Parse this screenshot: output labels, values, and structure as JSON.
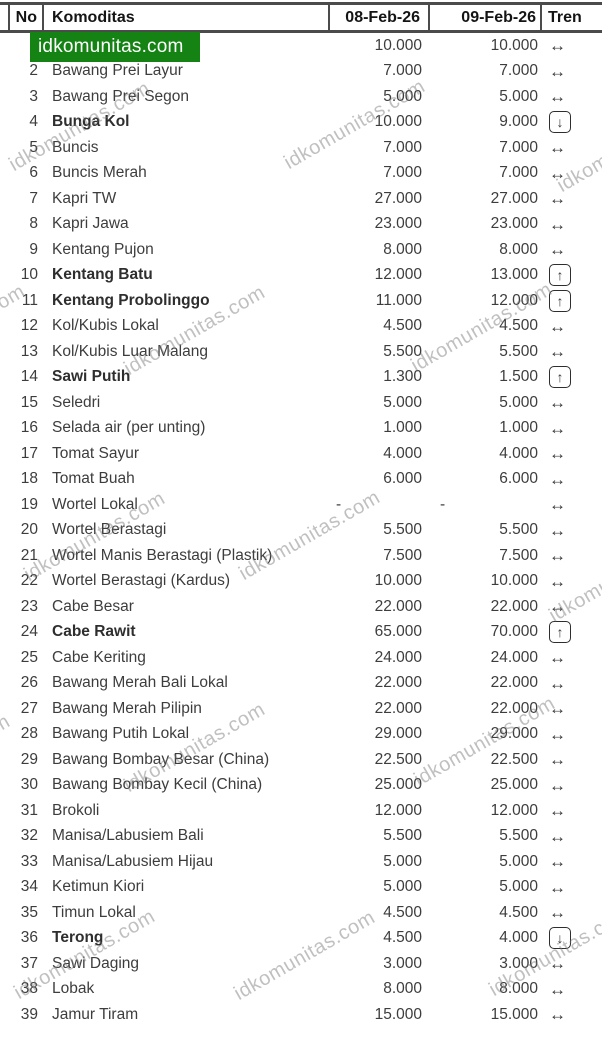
{
  "watermark": {
    "text": "idkomunitas.com",
    "banner_color": "#148314",
    "diagonal_color": "rgba(115,115,115,0.45)"
  },
  "icons": {
    "same": "↔",
    "up": "↑",
    "down": "↓"
  },
  "table": {
    "columns": {
      "no": "No",
      "komoditas": "Komoditas",
      "date1": "08-Feb-26",
      "date2": "09-Feb-26",
      "tren": "Tren"
    },
    "rows": [
      {
        "no": "1",
        "name": "",
        "bold": false,
        "p1": "10.000",
        "p2": "10.000",
        "trend": "same"
      },
      {
        "no": "2",
        "name": "Bawang Prei Layur",
        "bold": false,
        "p1": "7.000",
        "p2": "7.000",
        "trend": "same"
      },
      {
        "no": "3",
        "name": "Bawang Prei Segon",
        "bold": false,
        "p1": "5.000",
        "p2": "5.000",
        "trend": "same"
      },
      {
        "no": "4",
        "name": "Bunga Kol",
        "bold": true,
        "p1": "10.000",
        "p2": "9.000",
        "trend": "down"
      },
      {
        "no": "5",
        "name": "Buncis",
        "bold": false,
        "p1": "7.000",
        "p2": "7.000",
        "trend": "same"
      },
      {
        "no": "6",
        "name": "Buncis Merah",
        "bold": false,
        "p1": "7.000",
        "p2": "7.000",
        "trend": "same"
      },
      {
        "no": "7",
        "name": "Kapri TW",
        "bold": false,
        "p1": "27.000",
        "p2": "27.000",
        "trend": "same"
      },
      {
        "no": "8",
        "name": "Kapri Jawa",
        "bold": false,
        "p1": "23.000",
        "p2": "23.000",
        "trend": "same"
      },
      {
        "no": "9",
        "name": "Kentang Pujon",
        "bold": false,
        "p1": "8.000",
        "p2": "8.000",
        "trend": "same"
      },
      {
        "no": "10",
        "name": "Kentang Batu",
        "bold": true,
        "p1": "12.000",
        "p2": "13.000",
        "trend": "up"
      },
      {
        "no": "11",
        "name": "Kentang Probolinggo",
        "bold": true,
        "p1": "11.000",
        "p2": "12.000",
        "trend": "up"
      },
      {
        "no": "12",
        "name": "Kol/Kubis Lokal",
        "bold": false,
        "p1": "4.500",
        "p2": "4.500",
        "trend": "same"
      },
      {
        "no": "13",
        "name": "Kol/Kubis Luar Malang",
        "bold": false,
        "p1": "5.500",
        "p2": "5.500",
        "trend": "same"
      },
      {
        "no": "14",
        "name": "Sawi Putih",
        "bold": true,
        "p1": "1.300",
        "p2": "1.500",
        "trend": "up"
      },
      {
        "no": "15",
        "name": "Seledri",
        "bold": false,
        "p1": "5.000",
        "p2": "5.000",
        "trend": "same"
      },
      {
        "no": "16",
        "name": "Selada air (per unting)",
        "bold": false,
        "p1": "1.000",
        "p2": "1.000",
        "trend": "same"
      },
      {
        "no": "17",
        "name": "Tomat Sayur",
        "bold": false,
        "p1": "4.000",
        "p2": "4.000",
        "trend": "same"
      },
      {
        "no": "18",
        "name": "Tomat Buah",
        "bold": false,
        "p1": "6.000",
        "p2": "6.000",
        "trend": "same"
      },
      {
        "no": "19",
        "name": "Wortel Lokal",
        "bold": false,
        "p1": "-",
        "p2": "-",
        "trend": "same"
      },
      {
        "no": "20",
        "name": "Wortel Berastagi",
        "bold": false,
        "p1": "5.500",
        "p2": "5.500",
        "trend": "same"
      },
      {
        "no": "21",
        "name": "Wortel Manis Berastagi (Plastik)",
        "bold": false,
        "p1": "7.500",
        "p2": "7.500",
        "trend": "same"
      },
      {
        "no": "22",
        "name": "Wortel Berastagi (Kardus)",
        "bold": false,
        "p1": "10.000",
        "p2": "10.000",
        "trend": "same"
      },
      {
        "no": "23",
        "name": "Cabe Besar",
        "bold": false,
        "p1": "22.000",
        "p2": "22.000",
        "trend": "same"
      },
      {
        "no": "24",
        "name": "Cabe Rawit",
        "bold": true,
        "p1": "65.000",
        "p2": "70.000",
        "trend": "up"
      },
      {
        "no": "25",
        "name": "Cabe Keriting",
        "bold": false,
        "p1": "24.000",
        "p2": "24.000",
        "trend": "same"
      },
      {
        "no": "26",
        "name": "Bawang Merah Bali Lokal",
        "bold": false,
        "p1": "22.000",
        "p2": "22.000",
        "trend": "same"
      },
      {
        "no": "27",
        "name": "Bawang Merah Pilipin",
        "bold": false,
        "p1": "22.000",
        "p2": "22.000",
        "trend": "same"
      },
      {
        "no": "28",
        "name": "Bawang Putih Lokal",
        "bold": false,
        "p1": "29.000",
        "p2": "29.000",
        "trend": "same"
      },
      {
        "no": "29",
        "name": "Bawang Bombay Besar (China)",
        "bold": false,
        "p1": "22.500",
        "p2": "22.500",
        "trend": "same"
      },
      {
        "no": "30",
        "name": "Bawang Bombay Kecil (China)",
        "bold": false,
        "p1": "25.000",
        "p2": "25.000",
        "trend": "same"
      },
      {
        "no": "31",
        "name": "Brokoli",
        "bold": false,
        "p1": "12.000",
        "p2": "12.000",
        "trend": "same"
      },
      {
        "no": "32",
        "name": "Manisa/Labusiem Bali",
        "bold": false,
        "p1": "5.500",
        "p2": "5.500",
        "trend": "same"
      },
      {
        "no": "33",
        "name": "Manisa/Labusiem Hijau",
        "bold": false,
        "p1": "5.000",
        "p2": "5.000",
        "trend": "same"
      },
      {
        "no": "34",
        "name": "Ketimun Kiori",
        "bold": false,
        "p1": "5.000",
        "p2": "5.000",
        "trend": "same"
      },
      {
        "no": "35",
        "name": "Timun Lokal",
        "bold": false,
        "p1": "4.500",
        "p2": "4.500",
        "trend": "same"
      },
      {
        "no": "36",
        "name": "Terong",
        "bold": true,
        "p1": "4.500",
        "p2": "4.000",
        "trend": "down"
      },
      {
        "no": "37",
        "name": "Sawi Daging",
        "bold": false,
        "p1": "3.000",
        "p2": "3.000",
        "trend": "same"
      },
      {
        "no": "38",
        "name": "Lobak",
        "bold": false,
        "p1": "8.000",
        "p2": "8.000",
        "trend": "same"
      },
      {
        "no": "39",
        "name": "Jamur Tiram",
        "bold": false,
        "p1": "15.000",
        "p2": "15.000",
        "trend": "same"
      }
    ]
  }
}
